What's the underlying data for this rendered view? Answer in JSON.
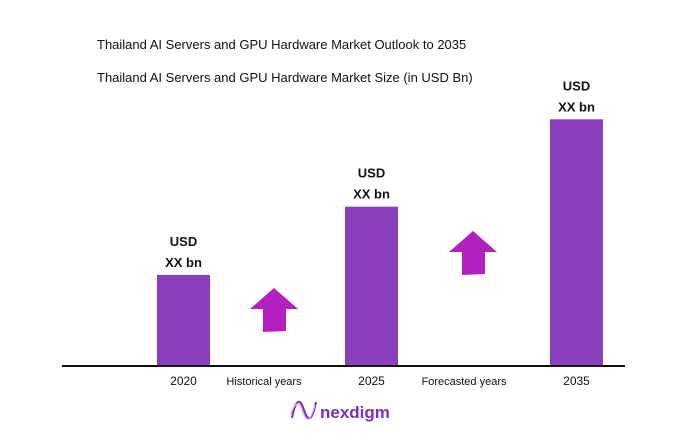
{
  "chart_data": {
    "type": "bar",
    "title": "Thailand AI Servers and GPU Hardware Market Outlook to 2035",
    "subtitle": "Thailand AI Servers and GPU Hardware Market Size (in USD Bn)",
    "categories": [
      "2020",
      "2025",
      "2035"
    ],
    "values": [
      33,
      58,
      90
    ],
    "ylim": [
      0,
      100
    ],
    "data_labels": [
      [
        "USD",
        "XX bn"
      ],
      [
        "USD",
        "XX bn"
      ],
      [
        "USD",
        "XX bn"
      ]
    ],
    "period_labels": [
      "Historical years",
      "Forecasted years"
    ],
    "grid": false,
    "bar_color": "#8a3fbd",
    "arrow_color": "#b320be"
  },
  "logo": {
    "text": "nexdigm",
    "color": "#7b2fbf"
  }
}
